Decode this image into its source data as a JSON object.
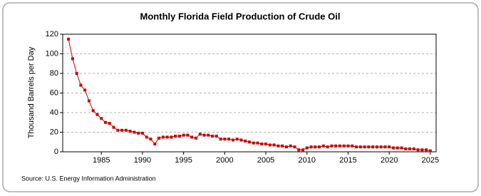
{
  "chart_data": {
    "type": "line",
    "title": "Monthly Florida Field Production of Crude Oil",
    "y_label": "Thousand Barrels per Day",
    "source": "Source: U.S. Energy Information Administration",
    "color": "#cc0000",
    "marker": "square",
    "grid": true,
    "xlim": [
      1980.3,
      2025.7
    ],
    "xticks": [
      1985,
      1990,
      1995,
      2000,
      2005,
      2010,
      2015,
      2020,
      2025
    ],
    "ylim": [
      0,
      120
    ],
    "yticks": [
      0,
      20,
      40,
      60,
      80,
      100,
      120
    ],
    "x": [
      1981,
      1981.5,
      1982,
      1982.5,
      1983,
      1983.5,
      1984,
      1984.5,
      1985,
      1985.5,
      1986,
      1986.5,
      1987,
      1987.5,
      1988,
      1988.5,
      1989,
      1989.5,
      1990,
      1990.5,
      1991,
      1991.5,
      1992,
      1992.5,
      1993,
      1993.5,
      1994,
      1994.5,
      1995,
      1995.5,
      1996,
      1996.5,
      1997,
      1997.5,
      1998,
      1998.5,
      1999,
      1999.5,
      2000,
      2000.5,
      2001,
      2001.5,
      2002,
      2002.5,
      2003,
      2003.5,
      2004,
      2004.5,
      2005,
      2005.5,
      2006,
      2006.5,
      2007,
      2007.5,
      2008,
      2008.5,
      2009,
      2009.5,
      2010,
      2010.5,
      2011,
      2011.5,
      2012,
      2012.5,
      2013,
      2013.5,
      2014,
      2014.5,
      2015,
      2015.5,
      2016,
      2016.5,
      2017,
      2017.5,
      2018,
      2018.5,
      2019,
      2019.5,
      2020,
      2020.5,
      2021,
      2021.5,
      2022,
      2022.5,
      2023,
      2023.5,
      2024,
      2024.5,
      2025
    ],
    "values": [
      115,
      95,
      80,
      68,
      63,
      52,
      42,
      38,
      34,
      30,
      29,
      25,
      22,
      22,
      22,
      21,
      20,
      19,
      19,
      15,
      13,
      8,
      14,
      15,
      15,
      15,
      16,
      16,
      17,
      17,
      15,
      14,
      18,
      17,
      17,
      16,
      16,
      13,
      13,
      13,
      12,
      13,
      12,
      11,
      10,
      9,
      9,
      8,
      8,
      7,
      7,
      6,
      6,
      5,
      6,
      5,
      2,
      2,
      4,
      5,
      5,
      5,
      6,
      5,
      6,
      6,
      6,
      6,
      6,
      6,
      5,
      5,
      5,
      5,
      5,
      5,
      5,
      5,
      5,
      4,
      4,
      4,
      3,
      3,
      3,
      2,
      2,
      2,
      1
    ]
  }
}
